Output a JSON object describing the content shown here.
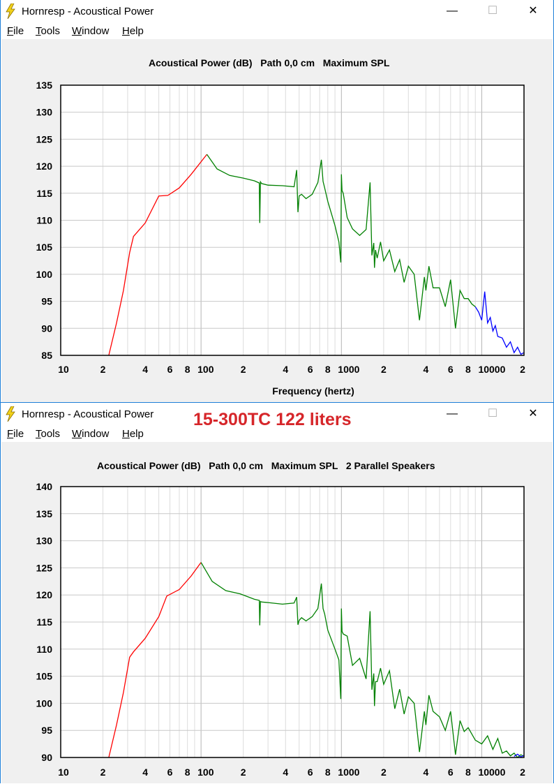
{
  "windows": [
    {
      "title": "Hornresp - Acoustical Power",
      "menu": [
        "File",
        "Tools",
        "Window",
        "Help"
      ],
      "menu_underline": [
        "F",
        "T",
        "W",
        "H"
      ],
      "controls": {
        "minimize": "—",
        "maximize": "☐",
        "close": "✕"
      }
    },
    {
      "title": "Hornresp - Acoustical Power",
      "overlay_title": "15-300TC 122 liters",
      "menu": [
        "File",
        "Tools",
        "Window",
        "Help"
      ],
      "menu_underline": [
        "F",
        "T",
        "W",
        "H"
      ],
      "controls": {
        "minimize": "—",
        "maximize": "☐",
        "close": "✕"
      }
    }
  ],
  "chart_data": [
    {
      "type": "line",
      "title": "Acoustical Power (dB)   Path 0,0 cm   Maximum SPL",
      "xlabel": "Frequency (hertz)",
      "xscale": "log",
      "xlim": [
        10,
        20000
      ],
      "ylim": [
        85,
        135
      ],
      "yticks": [
        135,
        130,
        125,
        120,
        115,
        110,
        105,
        100,
        95,
        90,
        85
      ],
      "xtick_labels": [
        "10",
        "2",
        "4",
        "6",
        "8",
        "100",
        "2",
        "4",
        "6",
        "8",
        "1000",
        "2",
        "4",
        "6",
        "8",
        "10000",
        "2"
      ],
      "grid": true,
      "series": [
        {
          "color": "#ff0000",
          "x": [
            22,
            25,
            28,
            31,
            33,
            40,
            50,
            58,
            70,
            85,
            110
          ],
          "y": [
            85,
            91,
            97,
            104,
            107,
            109.5,
            114.5,
            114.6,
            116,
            118.5,
            122.2
          ]
        },
        {
          "color": "#008000",
          "x": [
            110,
            130,
            160,
            200,
            240,
            260,
            262,
            265,
            270,
            300,
            380,
            460,
            480,
            490,
            500,
            520,
            560,
            620,
            680,
            720,
            740,
            760,
            800,
            900,
            960,
            990,
            1000,
            1010,
            1030,
            1100,
            1200,
            1350,
            1500,
            1600,
            1650,
            1700,
            1720,
            1750,
            1800,
            1900,
            2000,
            2200,
            2400,
            2600,
            2800,
            3000,
            3300,
            3600,
            3900,
            4000,
            4200,
            4500,
            5000,
            5500,
            6000,
            6500,
            7000,
            7500,
            8000,
            8500,
            9000
          ],
          "y": [
            122.2,
            119.5,
            118.3,
            117.8,
            117.3,
            116.9,
            109.5,
            117.1,
            116.8,
            116.5,
            116.4,
            116.2,
            119.3,
            111.5,
            114.5,
            114.8,
            114,
            114.8,
            117,
            121.2,
            117.2,
            116,
            113.5,
            109,
            106,
            102.2,
            118.5,
            115.5,
            115,
            110.5,
            108.4,
            107.2,
            108.3,
            117,
            103.5,
            105.8,
            101.2,
            104.5,
            103,
            106,
            102.5,
            104.5,
            100.5,
            102.7,
            98.5,
            101.5,
            100,
            91.5,
            99.5,
            97,
            101.5,
            97.5,
            97.5,
            94,
            99,
            90,
            97,
            95.5,
            95.5,
            94.5,
            94
          ]
        },
        {
          "color": "#0000ff",
          "x": [
            9000,
            9500,
            10000,
            10500,
            11000,
            11500,
            12000,
            12500,
            13000,
            14000,
            15000,
            16000,
            17000,
            18000,
            19000,
            20000
          ],
          "y": [
            94,
            93,
            91.5,
            96.8,
            91,
            92,
            89.5,
            90.5,
            88.5,
            88.2,
            86.5,
            87.5,
            85.5,
            86.5,
            85.2,
            85.5
          ]
        }
      ]
    },
    {
      "type": "line",
      "title": "Acoustical Power (dB)   Path 0,0 cm   Maximum SPL   2 Parallel Speakers",
      "xscale": "log",
      "xlim": [
        10,
        20000
      ],
      "ylim": [
        90,
        140
      ],
      "yticks": [
        140,
        135,
        130,
        125,
        120,
        115,
        110,
        105,
        100,
        95,
        90
      ],
      "xtick_labels": [
        "10",
        "2",
        "4",
        "6",
        "8",
        "100",
        "2",
        "4",
        "6",
        "8",
        "1000",
        "2",
        "4",
        "6",
        "8",
        "10000",
        "2"
      ],
      "grid": true,
      "series": [
        {
          "color": "#ff0000",
          "x": [
            22,
            25,
            28,
            31,
            33,
            40,
            50,
            57,
            70,
            85,
            100
          ],
          "y": [
            90,
            96,
            102,
            108.5,
            109.5,
            112,
            116,
            119.8,
            121,
            123.5,
            126
          ]
        },
        {
          "color": "#008000",
          "x": [
            100,
            120,
            150,
            190,
            240,
            260,
            262,
            265,
            270,
            300,
            380,
            460,
            480,
            490,
            500,
            520,
            560,
            620,
            680,
            720,
            740,
            760,
            800,
            900,
            960,
            990,
            1000,
            1010,
            1030,
            1100,
            1200,
            1350,
            1500,
            1600,
            1650,
            1700,
            1720,
            1750,
            1800,
            1900,
            2000,
            2200,
            2400,
            2600,
            2800,
            3000,
            3300,
            3600,
            3900,
            4000,
            4200,
            4500,
            5000,
            5500,
            6000,
            6500,
            7000,
            7500,
            8000,
            9000,
            10000,
            11000,
            12000,
            13000,
            14000,
            15000,
            16000,
            17000,
            18000,
            19000,
            20000
          ],
          "y": [
            126,
            122.5,
            120.8,
            120.2,
            119.2,
            119,
            114.4,
            118.8,
            118.7,
            118.6,
            118.3,
            118.5,
            119.6,
            114.5,
            115.3,
            115.8,
            115.2,
            116,
            117.5,
            122.1,
            117.5,
            116.5,
            113.5,
            110,
            108,
            100.8,
            117.5,
            113.3,
            112.8,
            112.4,
            107,
            108.3,
            104.5,
            117,
            102.5,
            105.5,
            99.5,
            104,
            104,
            106.5,
            103.5,
            106,
            99,
            102.6,
            98,
            101.2,
            100,
            91,
            98.5,
            96,
            101.5,
            98.5,
            97.5,
            95,
            98.5,
            90.5,
            96.8,
            94.8,
            95.5,
            93.2,
            92.5,
            94,
            91.5,
            93.5,
            90.8,
            91.2,
            90.3,
            90.8,
            90,
            90.5,
            90.2
          ]
        },
        {
          "color": "#0000ff",
          "x": [
            17000,
            18000,
            19000,
            20000
          ],
          "y": [
            90.2,
            90.6,
            90.1,
            90.4
          ]
        }
      ]
    }
  ]
}
